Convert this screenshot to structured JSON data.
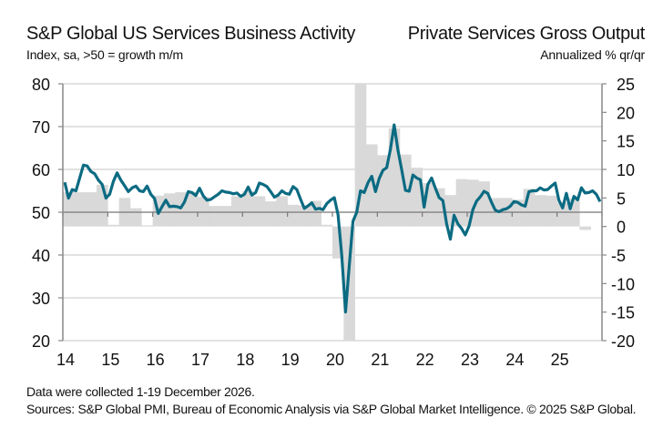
{
  "header": {
    "left_title": "S&P Global US Services Business Activity",
    "left_subtitle": "Index, sa, >50 = growth m/m",
    "right_title": "Private Services Gross Output",
    "right_subtitle": "Annualized % qr/qr"
  },
  "footer": {
    "note": "Data were collected 1-19 December 2026.",
    "sources": "Sources: S&P Global PMI, Bureau of Economic Analysis via S&P Global Market Intelligence. © 2025 S&P Global."
  },
  "colors": {
    "line": "#0b6b82",
    "bars": "#d9d9d9",
    "grid": "#d0d0d0",
    "axis": "#888888"
  },
  "chart_data": {
    "type": "line+bar",
    "title": "S&P Global US Services Business Activity vs Private Services Gross Output",
    "x_labels": [
      "14",
      "15",
      "16",
      "17",
      "18",
      "19",
      "20",
      "21",
      "22",
      "23",
      "24",
      "25"
    ],
    "x_range": [
      "2014-01",
      "2026-01"
    ],
    "left_axis": {
      "label": "Index, sa, >50 = growth m/m",
      "range": [
        20,
        80
      ],
      "ticks": [
        20,
        30,
        40,
        50,
        60,
        70,
        80
      ]
    },
    "right_axis": {
      "label": "Annualized % qr/qr",
      "range": [
        -20,
        25
      ],
      "ticks": [
        -20,
        -15,
        -10,
        -5,
        0,
        5,
        10,
        15,
        20,
        25
      ]
    },
    "grid": true,
    "series": [
      {
        "name": "S&P Global US Services Business Activity (monthly, left axis)",
        "type": "line",
        "start": "2014-01",
        "frequency": "monthly",
        "values": [
          57.0,
          53.3,
          55.3,
          55.0,
          58.0,
          61.0,
          60.8,
          59.5,
          59.0,
          57.5,
          56.5,
          53.3,
          54.2,
          57.2,
          59.2,
          57.5,
          56.2,
          54.8,
          55.7,
          56.1,
          55.0,
          54.8,
          56.1,
          54.2,
          53.2,
          49.7,
          51.3,
          52.8,
          51.3,
          51.4,
          51.3,
          51.0,
          52.4,
          54.8,
          54.6,
          53.9,
          55.6,
          53.8,
          52.8,
          53.0,
          53.6,
          54.2,
          55.0,
          54.7,
          54.6,
          54.3,
          54.5,
          53.7,
          54.2,
          55.9,
          54.0,
          54.6,
          56.8,
          56.5,
          56.0,
          54.8,
          53.5,
          54.0,
          55.0,
          54.4,
          54.2,
          56.0,
          55.3,
          53.0,
          50.9,
          51.5,
          52.2,
          50.7,
          50.9,
          50.6,
          52.0,
          52.8,
          53.4,
          49.4,
          39.8,
          26.7,
          37.5,
          47.9,
          50.0,
          55.0,
          54.6,
          56.9,
          58.4,
          54.8,
          57.9,
          59.8,
          60.4,
          64.7,
          70.4,
          64.6,
          59.9,
          55.1,
          54.9,
          58.7,
          58.0,
          57.6,
          51.2,
          56.5,
          58.0,
          55.6,
          53.4,
          52.7,
          47.3,
          43.7,
          49.3,
          47.3,
          46.2,
          44.7,
          46.8,
          50.6,
          52.6,
          53.6,
          54.9,
          54.4,
          52.3,
          50.5,
          50.1,
          50.6,
          50.8,
          51.4,
          52.5,
          52.3,
          51.7,
          51.4,
          54.8,
          55.0,
          55.0,
          55.7,
          55.2,
          55.3,
          56.1,
          56.8,
          52.8,
          51.0,
          54.4,
          50.8,
          53.7,
          52.9,
          55.7,
          54.5,
          54.6,
          55.0,
          54.2,
          52.5
        ]
      },
      {
        "name": "Private Services Gross Output (quarterly, right axis)",
        "type": "bar",
        "start": "2014-Q1",
        "frequency": "quarterly",
        "values": [
          6.0,
          6.0,
          6.0,
          7.3,
          0.3,
          5.0,
          3.2,
          0.2,
          5.4,
          5.8,
          6.0,
          6.0,
          5.2,
          3.6,
          3.6,
          5.3,
          6.2,
          5.3,
          4.4,
          5.3,
          3.8,
          3.7,
          4.5,
          0.3,
          -5.6,
          -27.0,
          33.0,
          14.4,
          12.5,
          17.2,
          12.6,
          10.3,
          7.6,
          6.7,
          5.5,
          8.3,
          8.2,
          7.9,
          5.0,
          5.0,
          4.7,
          6.6,
          5.5,
          5.4,
          4.2,
          4.9,
          -0.6
        ]
      }
    ]
  }
}
